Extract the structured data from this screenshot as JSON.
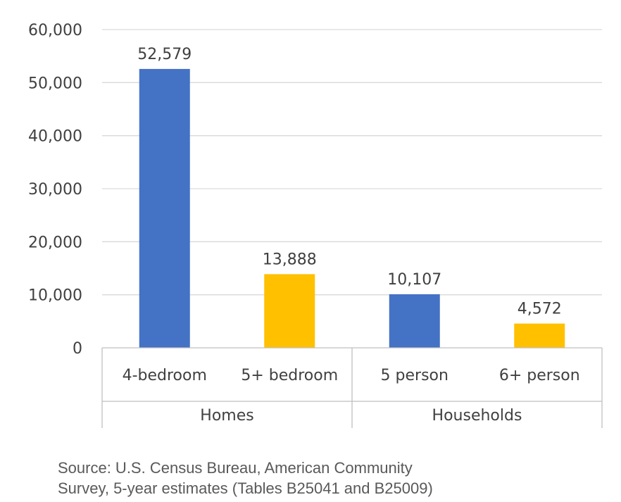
{
  "chart_data": {
    "type": "bar",
    "title": "",
    "xlabel": "",
    "ylabel": "",
    "ylim": [
      0,
      60000
    ],
    "yticks": [
      0,
      10000,
      20000,
      30000,
      40000,
      50000,
      60000
    ],
    "ytick_labels": [
      "0",
      "10,000",
      "20,000",
      "30,000",
      "40,000",
      "50,000",
      "60,000"
    ],
    "grid": true,
    "legend": "none",
    "groups": [
      {
        "label": "Homes",
        "categories": [
          {
            "label": "4-bedroom",
            "value": 52579,
            "value_label": "52,579",
            "color": "#4472C4"
          },
          {
            "label": "5+ bedroom",
            "value": 13888,
            "value_label": "13,888",
            "color": "#FFC000"
          }
        ]
      },
      {
        "label": "Households",
        "categories": [
          {
            "label": "5 person",
            "value": 10107,
            "value_label": "10,107",
            "color": "#4472C4"
          },
          {
            "label": "6+ person",
            "value": 4572,
            "value_label": "4,572",
            "color": "#FFC000"
          }
        ]
      }
    ]
  },
  "source": {
    "line1": "Source: U.S. Census Bureau, American Community",
    "line2": "Survey, 5-year estimates (Tables B25041 and B25009)"
  }
}
